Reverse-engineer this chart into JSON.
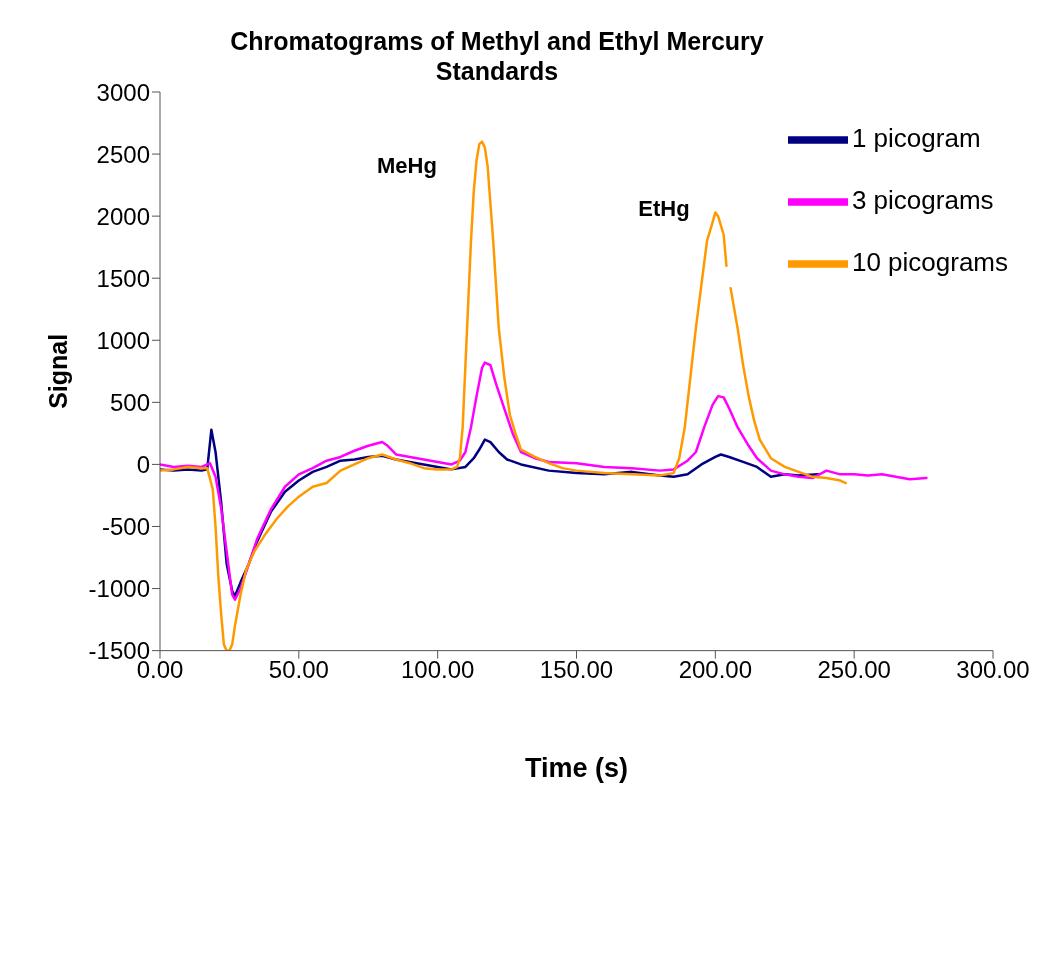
{
  "chart_data": {
    "type": "line",
    "title": "Chromatograms of Methyl and Ethyl Mercury Standards",
    "xlabel": "Time (s)",
    "ylabel": "Signal",
    "xlim": [
      0,
      300
    ],
    "xticks": [
      {
        "value": 0,
        "label": "0.00"
      },
      {
        "value": 50,
        "label": "50.00"
      },
      {
        "value": 100,
        "label": "100.00"
      },
      {
        "value": 150,
        "label": "150.00"
      },
      {
        "value": 200,
        "label": "200.00"
      },
      {
        "value": 250,
        "label": "250.00"
      },
      {
        "value": 300,
        "label": "300.00"
      }
    ],
    "ylim": [
      -1500,
      3000
    ],
    "yticks": [
      -1500,
      -1000,
      -500,
      0,
      500,
      1000,
      1500,
      2000,
      2500,
      3000
    ],
    "grid": false,
    "legend": "top right",
    "marker": "none",
    "line_style": "solid",
    "annotations": [
      "MeHg",
      "EtHg"
    ],
    "series": [
      {
        "name": "1 picogram",
        "color": "#000080",
        "x": [
          0,
          5,
          10,
          15,
          17,
          18.5,
          20,
          22,
          24,
          26,
          27,
          29,
          32,
          35,
          40,
          45,
          50,
          55,
          60,
          65,
          70,
          75,
          80,
          85,
          90,
          95,
          100,
          105,
          110,
          113,
          115,
          117,
          119,
          122,
          125,
          130,
          140,
          150,
          160,
          170,
          180,
          185,
          190,
          195,
          200,
          202,
          205,
          210,
          215,
          220,
          225,
          230,
          237
        ],
        "values": [
          -40,
          -50,
          -40,
          -50,
          -40,
          280,
          100,
          -300,
          -800,
          -1020,
          -1060,
          -950,
          -800,
          -620,
          -380,
          -220,
          -130,
          -60,
          -20,
          30,
          40,
          60,
          70,
          40,
          20,
          0,
          -20,
          -40,
          -20,
          50,
          120,
          200,
          180,
          100,
          40,
          0,
          -50,
          -70,
          -80,
          -60,
          -90,
          -100,
          -80,
          0,
          60,
          80,
          60,
          20,
          -20,
          -100,
          -80,
          -90,
          -80
        ]
      },
      {
        "name": "3 picograms",
        "color": "#ff00ff",
        "x": [
          0,
          5,
          10,
          15,
          18,
          20,
          22,
          24,
          26,
          27,
          29,
          32,
          35,
          40,
          45,
          50,
          55,
          60,
          65,
          70,
          75,
          80,
          82,
          85,
          90,
          95,
          100,
          105,
          108,
          110,
          112,
          114,
          116,
          117,
          119,
          121,
          124,
          127,
          130,
          135,
          140,
          150,
          160,
          170,
          180,
          185,
          190,
          193,
          196,
          199,
          201,
          203,
          205,
          208,
          212,
          215,
          220,
          225,
          230,
          235,
          240,
          245,
          250,
          255,
          260,
          265,
          270,
          276
        ],
        "values": [
          0,
          -20,
          -10,
          -20,
          10,
          -100,
          -350,
          -700,
          -1050,
          -1090,
          -1000,
          -800,
          -600,
          -360,
          -180,
          -80,
          -30,
          30,
          60,
          110,
          150,
          180,
          150,
          80,
          60,
          40,
          20,
          0,
          30,
          100,
          300,
          550,
          780,
          820,
          800,
          650,
          450,
          250,
          100,
          50,
          20,
          10,
          -20,
          -30,
          -50,
          -40,
          30,
          100,
          300,
          480,
          550,
          540,
          450,
          300,
          150,
          50,
          -50,
          -80,
          -100,
          -110,
          -50,
          -80,
          -80,
          -90,
          -80,
          -100,
          -120,
          -110
        ]
      },
      {
        "name": "10 picograms",
        "color": "#ff9900",
        "x": [
          0,
          5,
          10,
          15,
          17,
          19,
          20,
          21,
          22,
          23,
          24,
          25,
          26,
          27,
          29,
          31,
          34,
          38,
          42,
          46,
          50,
          55,
          60,
          65,
          70,
          75,
          80,
          85,
          90,
          95,
          100,
          105,
          107,
          108,
          109,
          110,
          111,
          112,
          113,
          114,
          115,
          116,
          117,
          118,
          119,
          120,
          121,
          122,
          124,
          126,
          128,
          130,
          135,
          140,
          145,
          150,
          160,
          170,
          180,
          185,
          187,
          189,
          191,
          193,
          195,
          197,
          199,
          200,
          201,
          203,
          204,
          205,
          205.5,
          208,
          210,
          212,
          214,
          216,
          220,
          225,
          230,
          235,
          240,
          245,
          247
        ],
        "values": [
          -50,
          -40,
          -20,
          -30,
          -30,
          -200,
          -500,
          -900,
          -1200,
          -1450,
          -1500,
          -1500,
          -1450,
          -1300,
          -1050,
          -850,
          -700,
          -560,
          -440,
          -340,
          -260,
          -180,
          -150,
          -50,
          0,
          50,
          80,
          40,
          10,
          -30,
          -40,
          -40,
          -20,
          50,
          300,
          800,
          1300,
          1800,
          2200,
          2450,
          2580,
          2600,
          2550,
          2400,
          2100,
          1800,
          1450,
          1100,
          700,
          400,
          250,
          120,
          60,
          10,
          -30,
          -50,
          -70,
          -80,
          -90,
          -70,
          50,
          300,
          700,
          1100,
          1450,
          1800,
          1950,
          2030,
          2000,
          1850,
          1600,
          null,
          1420,
          1100,
          800,
          550,
          350,
          200,
          50,
          -20,
          -60,
          -100,
          -110,
          -130,
          -150
        ]
      }
    ]
  }
}
